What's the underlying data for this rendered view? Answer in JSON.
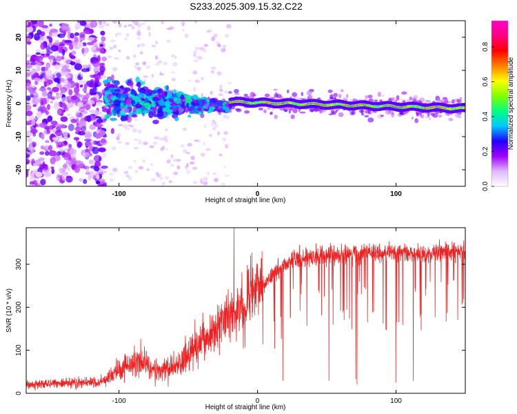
{
  "figure_title": "S233.2025.309.15.32.C22",
  "chart_data": [
    {
      "type": "heatmap",
      "title": "",
      "xlabel": "Height of straight line (km)",
      "ylabel": "Frequency (Hz)",
      "xlim": [
        -167,
        150
      ],
      "ylim": [
        -25,
        25
      ],
      "xticks": [
        -100,
        0,
        100
      ],
      "xtick_labels": [
        "-100",
        "0",
        "100"
      ],
      "yticks": [
        -20,
        -10,
        0,
        10,
        20
      ],
      "ytick_labels": [
        "-20",
        "-10",
        "0",
        "10",
        "20"
      ],
      "colorbar": {
        "label": "Normalized spectral amplitude",
        "range": [
          0,
          0.95
        ],
        "ticks": [
          0.0,
          0.2,
          0.4,
          0.6,
          0.8
        ],
        "tick_labels": [
          "0.0",
          "0.2",
          "0.4",
          "0.6",
          "0.8"
        ],
        "colormap": [
          "#ffffff",
          "#e0b8ff",
          "#a000ff",
          "#2000ff",
          "#00c8ff",
          "#00ff80",
          "#80ff00",
          "#ffff00",
          "#ff8000",
          "#ff0000",
          "#ff0080",
          "#ff00c8"
        ]
      },
      "features": [
        {
          "name": "broadband-noise",
          "x_range": [
            -167,
            -110
          ],
          "freq_range": [
            -25,
            25
          ],
          "amplitude": 0.15
        },
        {
          "name": "converging-band",
          "x_range": [
            -110,
            -20
          ],
          "freq_range": [
            -8,
            10
          ],
          "amplitude": 0.25
        },
        {
          "name": "signal-line",
          "x_range": [
            -20,
            150
          ],
          "center_freq_start": 0.5,
          "center_freq_end": -1.5,
          "amplitude_peak": 0.9
        }
      ]
    },
    {
      "type": "line",
      "title": "",
      "xlabel": "Height of straight line (km)",
      "ylabel": "SNR (10 * v/v)",
      "xlim": [
        -167,
        150
      ],
      "ylim": [
        0,
        385
      ],
      "xticks": [
        -100,
        0,
        100
      ],
      "xtick_labels": [
        "-100",
        "0",
        "100"
      ],
      "yticks": [
        0,
        100,
        200,
        300
      ],
      "ytick_labels": [
        "0",
        "100",
        "200",
        "300"
      ],
      "series": [
        {
          "name": "SNR",
          "color": "#ee2222",
          "x": [
            -167,
            -150,
            -130,
            -115,
            -105,
            -95,
            -85,
            -78,
            -70,
            -60,
            -50,
            -45,
            -40,
            -35,
            -30,
            -25,
            -20,
            -15,
            -10,
            -5,
            0,
            5,
            10,
            15,
            20,
            25,
            30,
            40,
            50,
            60,
            70,
            80,
            90,
            100,
            110,
            120,
            130,
            140,
            150
          ],
          "values": [
            20,
            22,
            25,
            25,
            40,
            65,
            75,
            60,
            55,
            62,
            90,
            100,
            125,
            135,
            150,
            165,
            175,
            190,
            205,
            225,
            240,
            255,
            275,
            285,
            300,
            310,
            315,
            318,
            322,
            322,
            324,
            326,
            325,
            328,
            326,
            327,
            330,
            330,
            335
          ]
        }
      ],
      "annotations": {
        "spike_x": -17,
        "spike_value": 385,
        "dropout_floor": 20,
        "dropout_x_range": [
          10,
          125
        ]
      }
    }
  ]
}
